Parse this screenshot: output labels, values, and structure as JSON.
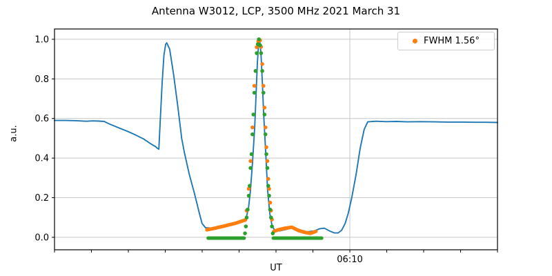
{
  "chart_data": {
    "type": "line",
    "title": "Antenna W3012, LCP, 3500 MHz 2021 March 31",
    "xlabel": "UT",
    "ylabel": "a.u.",
    "xlim": [
      0,
      1
    ],
    "ylim": [
      -0.063,
      1.052
    ],
    "x_unit": "fraction of visible x-axis (time axis; only labeled tick reads 06:10)",
    "x_minor_ticks": [
      0,
      0.0833,
      0.1667,
      0.25,
      0.3333,
      0.4167,
      0.5,
      0.5833,
      0.6667,
      0.75,
      0.8333,
      0.9167,
      1.0
    ],
    "x_major_tick": {
      "label": "06:10",
      "fraction": 0.6667
    },
    "y_ticks": [
      0.0,
      0.2,
      0.4,
      0.6,
      0.8,
      1.0
    ],
    "grid": {
      "horizontal": true,
      "vertical": "at major x tick only",
      "color": "#c6c6c6"
    },
    "legend": {
      "position": "upper right",
      "entries": [
        {
          "label": "FWHM 1.56°",
          "color": "#ff7f0e",
          "marker": "point"
        }
      ]
    },
    "series": [
      {
        "name": "antenna-scan-signal",
        "type": "line",
        "color": "#1f77b4",
        "line_width": 1.9,
        "points": [
          [
            0.0,
            0.59
          ],
          [
            0.025,
            0.59
          ],
          [
            0.048,
            0.589
          ],
          [
            0.072,
            0.586
          ],
          [
            0.087,
            0.588
          ],
          [
            0.1,
            0.587
          ],
          [
            0.112,
            0.585
          ],
          [
            0.126,
            0.57
          ],
          [
            0.145,
            0.553
          ],
          [
            0.164,
            0.536
          ],
          [
            0.182,
            0.518
          ],
          [
            0.201,
            0.497
          ],
          [
            0.216,
            0.474
          ],
          [
            0.228,
            0.458
          ],
          [
            0.233,
            0.448
          ],
          [
            0.2355,
            0.445
          ],
          [
            0.239,
            0.6
          ],
          [
            0.243,
            0.78
          ],
          [
            0.247,
            0.92
          ],
          [
            0.251,
            0.975
          ],
          [
            0.2535,
            0.982
          ],
          [
            0.26,
            0.95
          ],
          [
            0.269,
            0.82
          ],
          [
            0.279,
            0.65
          ],
          [
            0.287,
            0.5
          ],
          [
            0.293,
            0.43
          ],
          [
            0.304,
            0.32
          ],
          [
            0.316,
            0.22
          ],
          [
            0.326,
            0.13
          ],
          [
            0.333,
            0.07
          ],
          [
            0.341,
            0.048
          ],
          [
            0.36,
            0.046
          ],
          [
            0.383,
            0.056
          ],
          [
            0.407,
            0.068
          ],
          [
            0.425,
            0.082
          ],
          [
            0.433,
            0.1
          ],
          [
            0.438,
            0.15
          ],
          [
            0.442,
            0.23
          ],
          [
            0.447,
            0.38
          ],
          [
            0.452,
            0.56
          ],
          [
            0.455,
            0.72
          ],
          [
            0.458,
            0.88
          ],
          [
            0.461,
            0.99
          ],
          [
            0.463,
            1.0
          ],
          [
            0.466,
            0.93
          ],
          [
            0.469,
            0.79
          ],
          [
            0.472,
            0.63
          ],
          [
            0.477,
            0.42
          ],
          [
            0.481,
            0.24
          ],
          [
            0.486,
            0.12
          ],
          [
            0.491,
            0.06
          ],
          [
            0.497,
            0.035
          ],
          [
            0.508,
            0.032
          ],
          [
            0.523,
            0.04
          ],
          [
            0.539,
            0.048
          ],
          [
            0.554,
            0.038
          ],
          [
            0.57,
            0.028
          ],
          [
            0.586,
            0.032
          ],
          [
            0.598,
            0.043
          ],
          [
            0.609,
            0.046
          ],
          [
            0.621,
            0.032
          ],
          [
            0.632,
            0.022
          ],
          [
            0.64,
            0.022
          ],
          [
            0.648,
            0.035
          ],
          [
            0.656,
            0.07
          ],
          [
            0.663,
            0.12
          ],
          [
            0.671,
            0.2
          ],
          [
            0.681,
            0.32
          ],
          [
            0.69,
            0.45
          ],
          [
            0.699,
            0.545
          ],
          [
            0.707,
            0.583
          ],
          [
            0.726,
            0.586
          ],
          [
            0.749,
            0.584
          ],
          [
            0.772,
            0.585
          ],
          [
            0.796,
            0.583
          ],
          [
            0.827,
            0.584
          ],
          [
            0.858,
            0.583
          ],
          [
            0.889,
            0.582
          ],
          [
            0.92,
            0.582
          ],
          [
            0.952,
            0.581
          ],
          [
            0.975,
            0.581
          ],
          [
            1.0,
            0.58
          ]
        ]
      },
      {
        "name": "fwhm-fit-orange",
        "type": "scatter",
        "color": "#ff7f0e",
        "marker_radius": 2.6,
        "points": [
          [
            0.4338,
            0.135
          ],
          [
            0.4385,
            0.245
          ],
          [
            0.4425,
            0.385
          ],
          [
            0.4468,
            0.555
          ],
          [
            0.4512,
            0.765
          ],
          [
            0.4565,
            0.96
          ],
          [
            0.46,
            0.99
          ],
          [
            0.464,
            0.995
          ],
          [
            0.4663,
            0.962
          ],
          [
            0.469,
            0.875
          ],
          [
            0.4716,
            0.765
          ],
          [
            0.474,
            0.655
          ],
          [
            0.4762,
            0.555
          ],
          [
            0.4782,
            0.455
          ],
          [
            0.4805,
            0.385
          ],
          [
            0.4825,
            0.295
          ],
          [
            0.4845,
            0.245
          ],
          [
            0.4868,
            0.175
          ],
          [
            0.4888,
            0.135
          ],
          [
            0.4908,
            0.09
          ]
        ],
        "bands": [
          {
            "n": 42,
            "profile": [
              [
                0.344,
                0.038
              ],
              [
                0.36,
                0.045
              ],
              [
                0.385,
                0.058
              ],
              [
                0.41,
                0.072
              ],
              [
                0.431,
                0.088
              ]
            ]
          },
          {
            "n": 46,
            "profile": [
              [
                0.495,
                0.03
              ],
              [
                0.505,
                0.038
              ],
              [
                0.52,
                0.046
              ],
              [
                0.536,
                0.051
              ],
              [
                0.55,
                0.035
              ],
              [
                0.565,
                0.025
              ],
              [
                0.578,
                0.02
              ],
              [
                0.59,
                0.03
              ]
            ]
          }
        ]
      },
      {
        "name": "baseline-green",
        "type": "scatter",
        "color": "#2ca02c",
        "marker_radius": 2.6,
        "points": [
          [
            0.43,
            0.02
          ],
          [
            0.432,
            0.055
          ],
          [
            0.4338,
            0.1
          ],
          [
            0.436,
            0.14
          ],
          [
            0.4385,
            0.21
          ],
          [
            0.4405,
            0.26
          ],
          [
            0.4425,
            0.35
          ],
          [
            0.4448,
            0.42
          ],
          [
            0.4468,
            0.52
          ],
          [
            0.449,
            0.62
          ],
          [
            0.4512,
            0.73
          ],
          [
            0.4538,
            0.84
          ],
          [
            0.4565,
            0.93
          ],
          [
            0.459,
            0.975
          ],
          [
            0.4613,
            1.0
          ],
          [
            0.464,
            0.97
          ],
          [
            0.4663,
            0.93
          ],
          [
            0.469,
            0.84
          ],
          [
            0.4716,
            0.73
          ],
          [
            0.474,
            0.62
          ],
          [
            0.4762,
            0.52
          ],
          [
            0.4782,
            0.42
          ],
          [
            0.4805,
            0.35
          ],
          [
            0.4825,
            0.26
          ],
          [
            0.4845,
            0.21
          ],
          [
            0.4868,
            0.14
          ],
          [
            0.4888,
            0.1
          ],
          [
            0.4908,
            0.055
          ],
          [
            0.4928,
            0.02
          ]
        ],
        "bands": [
          {
            "n": 40,
            "profile": [
              [
                0.347,
                -0.004
              ],
              [
                0.428,
                -0.004
              ]
            ]
          },
          {
            "n": 52,
            "profile": [
              [
                0.494,
                -0.004
              ],
              [
                0.603,
                -0.004
              ]
            ]
          }
        ]
      }
    ]
  },
  "colors": {
    "signal_line": "#1f77b4",
    "orange_series": "#ff7f0e",
    "green_series": "#2ca02c",
    "grid": "#c6c6c6",
    "spine": "#000000",
    "text": "#000000",
    "legend_border": "#cccccc"
  }
}
